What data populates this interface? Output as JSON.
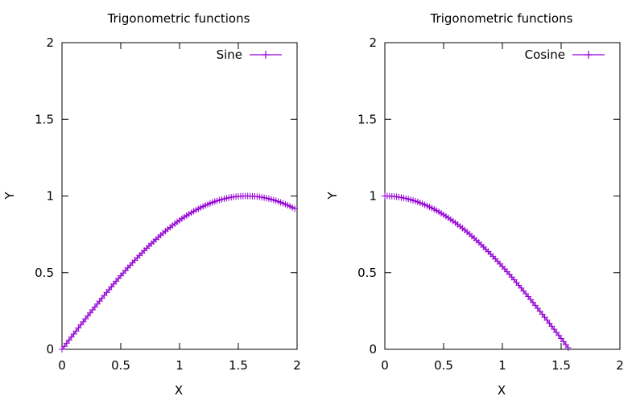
{
  "chart_data": [
    {
      "type": "line",
      "title": "Trigonometric functions",
      "xlabel": "X",
      "ylabel": "Y",
      "xlim": [
        0,
        2
      ],
      "ylim": [
        0,
        2
      ],
      "xticks": [
        "0",
        "0.5",
        "1",
        "1.5",
        "2"
      ],
      "yticks": [
        "0",
        "0.5",
        "1",
        "1.5",
        "2"
      ],
      "grid": false,
      "legend_position": "top-right",
      "marker": "plus",
      "series": [
        {
          "name": "Sine",
          "color": "#9400d3",
          "x": [
            0,
            0.02,
            0.04,
            0.06,
            0.08,
            0.1,
            0.12,
            0.14,
            0.16,
            0.18,
            0.2,
            0.22,
            0.24,
            0.26,
            0.28,
            0.3,
            0.32,
            0.34,
            0.36,
            0.38,
            0.4,
            0.42,
            0.44,
            0.46,
            0.48,
            0.5,
            0.52,
            0.54,
            0.56,
            0.58,
            0.6,
            0.62,
            0.64,
            0.66,
            0.68,
            0.7,
            0.72,
            0.74,
            0.76,
            0.78,
            0.8,
            0.82,
            0.84,
            0.86,
            0.88,
            0.9,
            0.92,
            0.94,
            0.96,
            0.98,
            1,
            1.02,
            1.04,
            1.06,
            1.08,
            1.1,
            1.12,
            1.14,
            1.16,
            1.18,
            1.2,
            1.22,
            1.24,
            1.26,
            1.28,
            1.3,
            1.32,
            1.34,
            1.36,
            1.38,
            1.4,
            1.42,
            1.44,
            1.46,
            1.48,
            1.5,
            1.52,
            1.54,
            1.56,
            1.58,
            1.6,
            1.62,
            1.64,
            1.66,
            1.68,
            1.7,
            1.72,
            1.74,
            1.76,
            1.78,
            1.8,
            1.82,
            1.84,
            1.86,
            1.88,
            1.9,
            1.92,
            1.94,
            1.96,
            1.98
          ],
          "y": [
            0,
            0.02,
            0.04,
            0.06,
            0.0799,
            0.0998,
            0.1197,
            0.1395,
            0.1593,
            0.179,
            0.1987,
            0.2182,
            0.2377,
            0.2571,
            0.2764,
            0.2955,
            0.3146,
            0.3335,
            0.3523,
            0.371,
            0.3894,
            0.4078,
            0.4259,
            0.4439,
            0.4618,
            0.4794,
            0.4969,
            0.5141,
            0.5312,
            0.548,
            0.5646,
            0.581,
            0.5972,
            0.6131,
            0.6288,
            0.6442,
            0.6594,
            0.6743,
            0.6889,
            0.7033,
            0.7174,
            0.7311,
            0.7446,
            0.7578,
            0.7707,
            0.7833,
            0.7956,
            0.8076,
            0.8192,
            0.8305,
            0.8415,
            0.8521,
            0.8624,
            0.8724,
            0.882,
            0.8912,
            0.9001,
            0.9086,
            0.9168,
            0.9246,
            0.932,
            0.939,
            0.9458,
            0.9521,
            0.958,
            0.9636,
            0.9687,
            0.9735,
            0.9779,
            0.9819,
            0.9854,
            0.9887,
            0.9915,
            0.9939,
            0.9959,
            0.9975,
            0.9987,
            0.9995,
            0.9999,
            0.9999,
            0.9996,
            0.9989,
            0.9976,
            0.996,
            0.994,
            0.9917,
            0.9889,
            0.9857,
            0.9822,
            0.9782,
            0.9738,
            0.9691,
            0.9639,
            0.9584,
            0.9525,
            0.9463,
            0.9396,
            0.9326,
            0.9252,
            0.9174
          ]
        }
      ]
    },
    {
      "type": "line",
      "title": "Trigonometric functions",
      "xlabel": "X",
      "ylabel": "Y",
      "xlim": [
        0,
        2
      ],
      "ylim": [
        0,
        2
      ],
      "xticks": [
        "0",
        "0.5",
        "1",
        "1.5",
        "2"
      ],
      "yticks": [
        "0",
        "0.5",
        "1",
        "1.5",
        "2"
      ],
      "grid": false,
      "legend_position": "top-right",
      "marker": "plus",
      "series": [
        {
          "name": "Cosine",
          "color": "#9400d3",
          "x": [
            0,
            0.02,
            0.04,
            0.06,
            0.08,
            0.1,
            0.12,
            0.14,
            0.16,
            0.18,
            0.2,
            0.22,
            0.24,
            0.26,
            0.28,
            0.3,
            0.32,
            0.34,
            0.36,
            0.38,
            0.4,
            0.42,
            0.44,
            0.46,
            0.48,
            0.5,
            0.52,
            0.54,
            0.56,
            0.58,
            0.6,
            0.62,
            0.64,
            0.66,
            0.68,
            0.7,
            0.72,
            0.74,
            0.76,
            0.78,
            0.8,
            0.82,
            0.84,
            0.86,
            0.88,
            0.9,
            0.92,
            0.94,
            0.96,
            0.98,
            1,
            1.02,
            1.04,
            1.06,
            1.08,
            1.1,
            1.12,
            1.14,
            1.16,
            1.18,
            1.2,
            1.22,
            1.24,
            1.26,
            1.28,
            1.3,
            1.32,
            1.34,
            1.36,
            1.38,
            1.4,
            1.42,
            1.44,
            1.46,
            1.48,
            1.5,
            1.52,
            1.54,
            1.56
          ],
          "y": [
            1,
            0.9998,
            0.9992,
            0.9982,
            0.9968,
            0.995,
            0.9928,
            0.9902,
            0.9872,
            0.9838,
            0.9801,
            0.9759,
            0.9713,
            0.9664,
            0.9611,
            0.9553,
            0.9492,
            0.9428,
            0.9359,
            0.9287,
            0.9211,
            0.9131,
            0.9048,
            0.8961,
            0.887,
            0.8776,
            0.8678,
            0.8577,
            0.8473,
            0.8365,
            0.8253,
            0.8139,
            0.8021,
            0.79,
            0.7776,
            0.7648,
            0.7518,
            0.7385,
            0.7248,
            0.7109,
            0.6967,
            0.6822,
            0.6675,
            0.6524,
            0.6372,
            0.6216,
            0.6058,
            0.5898,
            0.5735,
            0.557,
            0.5403,
            0.5234,
            0.5062,
            0.4889,
            0.4713,
            0.4536,
            0.4357,
            0.4176,
            0.3993,
            0.3809,
            0.3624,
            0.3436,
            0.3248,
            0.3058,
            0.2867,
            0.2675,
            0.2482,
            0.2288,
            0.2092,
            0.1896,
            0.17,
            0.1502,
            0.1304,
            0.1106,
            0.0907,
            0.0707,
            0.0508,
            0.0308,
            0.0108
          ]
        }
      ]
    }
  ]
}
